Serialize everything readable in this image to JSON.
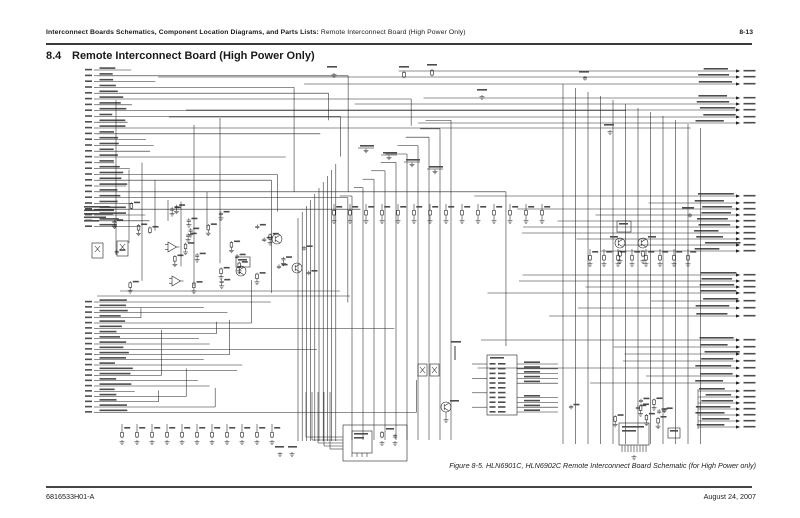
{
  "header": {
    "breadcrumb_bold": "Interconnect Boards Schematics, Component Location Diagrams, and Parts Lists:",
    "breadcrumb_regular": " Remote Interconnect Board (High Power Only)",
    "page_number": "8-13"
  },
  "section": {
    "number": "8.4",
    "title": "Remote Interconnect Board (High Power Only)"
  },
  "figure": {
    "caption": "Figure 8-5. HLN6901C, HLN6902C Remote Interconnect Board Schematic (for High Power only)"
  },
  "footer": {
    "document_number": "6816533H01-A",
    "date": "August 24, 2007"
  },
  "schematic": {
    "description": "Dense circuit schematic of the HLN6901C/HLN6902C remote interconnect board: left-edge connector pin rows, cross-page signal buses, analog op-amp/transistor section, connector pin table, and right-edge connector pin rows with arrows",
    "ink_color": "#222222",
    "paper_color": "#ffffff"
  }
}
